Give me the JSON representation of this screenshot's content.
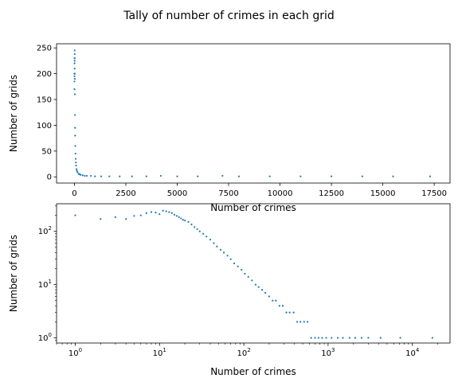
{
  "figure": {
    "title": "Tally of number of crimes in each grid",
    "point_color": "#1f77b4"
  },
  "chart_data": [
    {
      "type": "scatter",
      "xscale": "linear",
      "yscale": "linear",
      "xlabel": "Number of crimes",
      "ylabel": "Number of grids",
      "xlim": [
        -870,
        18270
      ],
      "ylim": [
        -12,
        258
      ],
      "xticks": [
        0,
        2500,
        5000,
        7500,
        10000,
        12500,
        15000,
        17500
      ],
      "xtick_labels": [
        "0",
        "2500",
        "5000",
        "7500",
        "10000",
        "12500",
        "15000",
        "17500"
      ],
      "yticks": [
        0,
        50,
        100,
        150,
        200,
        250
      ],
      "ytick_labels": [
        "0",
        "50",
        "100",
        "150",
        "200",
        "250"
      ],
      "x": [
        1,
        2,
        3,
        4,
        5,
        6,
        7,
        8,
        9,
        10,
        11,
        12,
        14,
        16,
        18,
        20,
        25,
        30,
        35,
        40,
        50,
        60,
        70,
        80,
        100,
        120,
        150,
        200,
        250,
        300,
        400,
        500,
        600,
        800,
        1000,
        1300,
        1700,
        2200,
        2800,
        3500,
        4200,
        5000,
        6000,
        7200,
        8000,
        9500,
        11000,
        12500,
        14000,
        15500,
        17300
      ],
      "y": [
        200,
        170,
        185,
        170,
        195,
        200,
        220,
        230,
        225,
        210,
        245,
        238,
        230,
        200,
        190,
        160,
        120,
        95,
        80,
        60,
        45,
        35,
        28,
        22,
        15,
        12,
        9,
        6,
        5,
        4,
        3,
        2,
        2,
        2,
        1,
        1,
        1,
        1,
        1,
        1,
        2,
        1,
        1,
        2,
        1,
        1,
        1,
        1,
        1,
        1,
        1
      ]
    },
    {
      "type": "scatter",
      "xscale": "log",
      "yscale": "log",
      "xlabel": "Number of crimes",
      "ylabel": "Number of grids",
      "xlim": [
        0.6,
        28000
      ],
      "ylim": [
        0.8,
        330
      ],
      "xticks": [
        1,
        10,
        100,
        1000,
        10000
      ],
      "xtick_labels": [
        "10^0",
        "10^1",
        "10^2",
        "10^3",
        "10^4"
      ],
      "yticks": [
        1,
        10,
        100
      ],
      "ytick_labels": [
        "10^0",
        "10^1",
        "10^2"
      ],
      "x": [
        1,
        2,
        3,
        4,
        5,
        6,
        7,
        8,
        9,
        10,
        11,
        12,
        13,
        14,
        15,
        16,
        17,
        18,
        19,
        20,
        22,
        24,
        26,
        28,
        30,
        33,
        36,
        40,
        44,
        48,
        53,
        58,
        64,
        70,
        77,
        85,
        94,
        103,
        113,
        125,
        138,
        150,
        165,
        180,
        200,
        220,
        240,
        265,
        290,
        320,
        350,
        390,
        430,
        470,
        520,
        570,
        630,
        700,
        770,
        850,
        950,
        1100,
        1300,
        1500,
        1800,
        2100,
        2500,
        3000,
        4200,
        7200,
        17300
      ],
      "y": [
        200,
        170,
        185,
        170,
        195,
        200,
        220,
        230,
        225,
        210,
        245,
        238,
        230,
        220,
        205,
        195,
        185,
        175,
        165,
        160,
        150,
        135,
        120,
        110,
        100,
        90,
        80,
        70,
        60,
        52,
        45,
        40,
        35,
        30,
        25,
        22,
        19,
        16,
        14,
        12,
        10,
        9,
        8,
        7,
        6,
        5,
        5,
        4,
        4,
        3,
        3,
        3,
        2,
        2,
        2,
        2,
        1,
        1,
        1,
        1,
        1,
        1,
        1,
        1,
        1,
        1,
        1,
        1,
        1,
        1,
        1
      ]
    }
  ]
}
